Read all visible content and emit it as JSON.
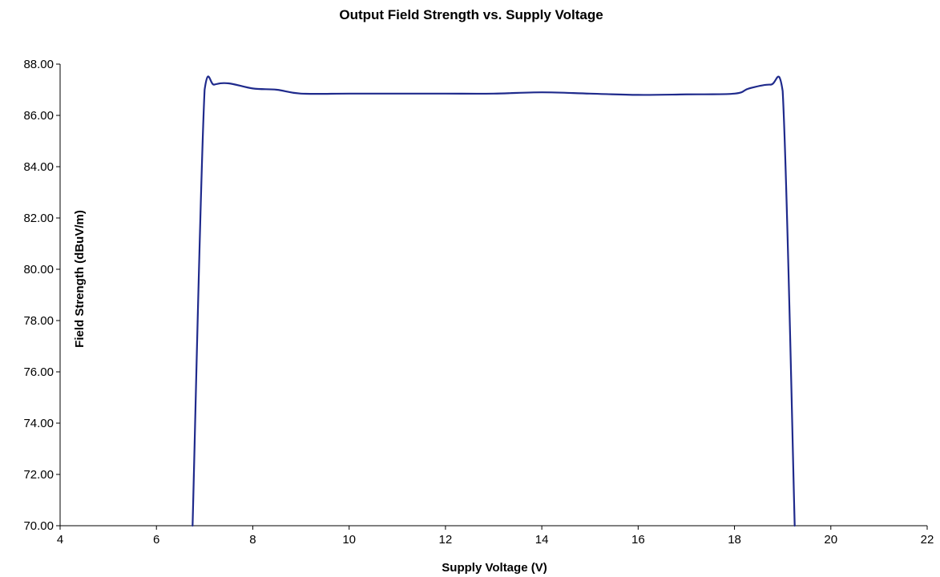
{
  "chart_data": {
    "type": "line",
    "title": "Output Field Strength vs. Supply Voltage",
    "xlabel": "Supply Voltage (V)",
    "ylabel": "Field Strength (dBuV/m)",
    "xlim": [
      4,
      22
    ],
    "ylim": [
      70,
      88
    ],
    "x_ticks": [
      4,
      6,
      8,
      10,
      12,
      14,
      16,
      18,
      20,
      22
    ],
    "y_ticks": [
      70,
      72,
      74,
      76,
      78,
      80,
      82,
      84,
      86,
      88
    ],
    "x_tick_labels": [
      "4",
      "6",
      "8",
      "10",
      "12",
      "14",
      "16",
      "18",
      "20",
      "22"
    ],
    "y_tick_labels": [
      "70.00",
      "72.00",
      "74.00",
      "76.00",
      "78.00",
      "80.00",
      "82.00",
      "84.00",
      "86.00",
      "88.00"
    ],
    "grid": false,
    "legend": "none",
    "series": [
      {
        "color": "#1f2a8c",
        "x": [
          6.75,
          7.0,
          7.2,
          7.5,
          8.0,
          8.5,
          9.0,
          10.0,
          11.0,
          12.0,
          13.0,
          14.0,
          15.0,
          16.0,
          17.0,
          18.0,
          18.3,
          18.75,
          19.0,
          19.25
        ],
        "y": [
          70.0,
          87.0,
          87.2,
          87.25,
          87.05,
          87.0,
          86.85,
          86.85,
          86.85,
          86.85,
          86.85,
          86.9,
          86.85,
          86.8,
          86.82,
          86.85,
          87.05,
          87.2,
          86.95,
          70.0
        ]
      }
    ]
  }
}
